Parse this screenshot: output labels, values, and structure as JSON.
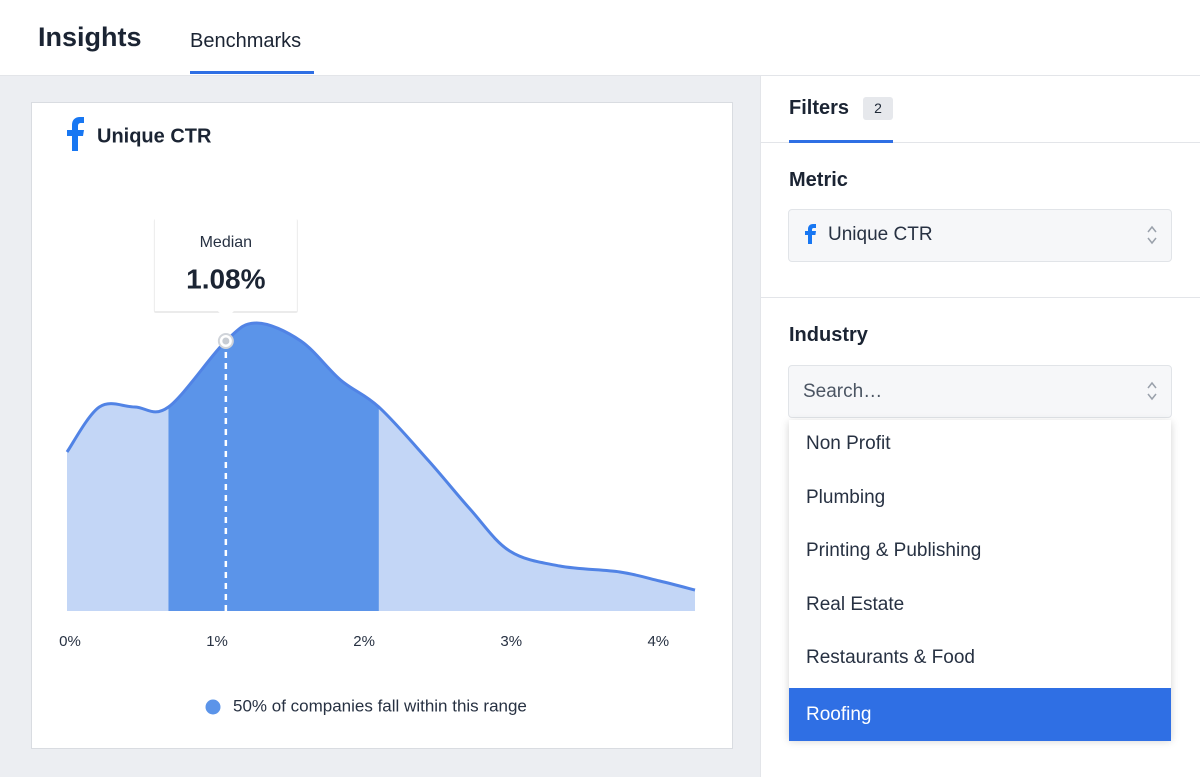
{
  "header": {
    "title": "Insights",
    "tabs": [
      "Benchmarks"
    ]
  },
  "chart_data": {
    "type": "area",
    "title": "Unique CTR",
    "x": [
      0,
      0.22,
      0.46,
      0.69,
      1.08,
      1.29,
      1.59,
      1.86,
      2.12,
      2.46,
      2.74,
      3.01,
      3.35,
      3.76,
      4.03,
      4.27
    ],
    "values": [
      53,
      68,
      68,
      68,
      90,
      96,
      90,
      77,
      68,
      50,
      34,
      20,
      15,
      13,
      10,
      7
    ],
    "xlim": [
      0,
      4.27
    ],
    "ylim": [
      0,
      100
    ],
    "xticks": [
      {
        "value": 0,
        "label": "0%"
      },
      {
        "value": 1,
        "label": "1%"
      },
      {
        "value": 2,
        "label": "2%"
      },
      {
        "value": 3,
        "label": "3%"
      },
      {
        "value": 4,
        "label": "4%"
      }
    ],
    "color": "#c3d6f6",
    "line_color": "#5183e5",
    "range": [
      0.69,
      2.12
    ],
    "range_color": "#5b94e9",
    "median": 1.08,
    "median_title": "Median",
    "median_label": "1.08%",
    "legend": "50% of companies fall within this range"
  },
  "filters": {
    "title": "Filters",
    "count": "2",
    "metric": {
      "label": "Metric",
      "value": "Unique CTR"
    },
    "industry": {
      "label": "Industry",
      "placeholder": "Search…",
      "options": [
        "Non Profit",
        "Plumbing",
        "Printing & Publishing",
        "Real Estate",
        "Restaurants & Food",
        "Roofing"
      ],
      "selected": 5
    }
  }
}
